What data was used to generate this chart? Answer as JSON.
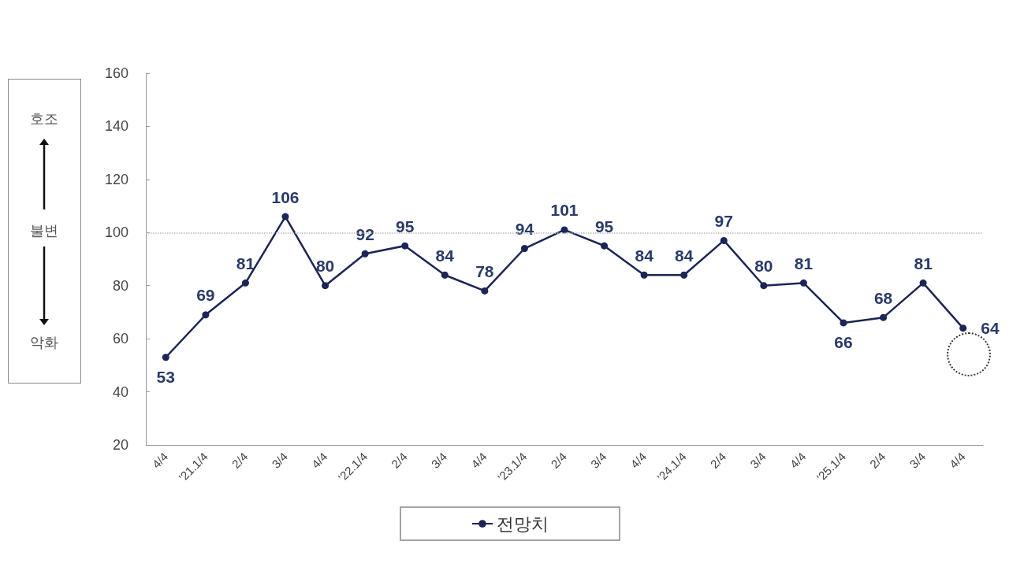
{
  "chart_data": {
    "type": "line",
    "categories": [
      "4/4",
      "'21.1/4",
      "2/4",
      "3/4",
      "4/4",
      "'22.1/4",
      "2/4",
      "3/4",
      "4/4",
      "'23.1/4",
      "2/4",
      "3/4",
      "4/4",
      "'24.1/4",
      "2/4",
      "3/4",
      "4/4",
      "'25.1/4",
      "2/4",
      "3/4",
      "4/4"
    ],
    "series": [
      {
        "name": "전망치",
        "color": "#1c2556",
        "values": [
          53,
          69,
          81,
          106,
          80,
          92,
          95,
          84,
          78,
          94,
          101,
          95,
          84,
          84,
          97,
          80,
          81,
          66,
          68,
          81,
          64
        ]
      }
    ],
    "ylim": [
      20,
      160
    ],
    "yticks": [
      20,
      40,
      60,
      80,
      100,
      120,
      140,
      160
    ],
    "ref_lines": [
      {
        "axis": "y",
        "value": 100,
        "color": "#bbbbbb",
        "line_style": "dotted"
      }
    ],
    "annotations": [
      "호조",
      "불변",
      "악화"
    ],
    "data_labels": true,
    "grid": false,
    "legend": "bottom",
    "marker": "circle",
    "line_style": "solid"
  }
}
